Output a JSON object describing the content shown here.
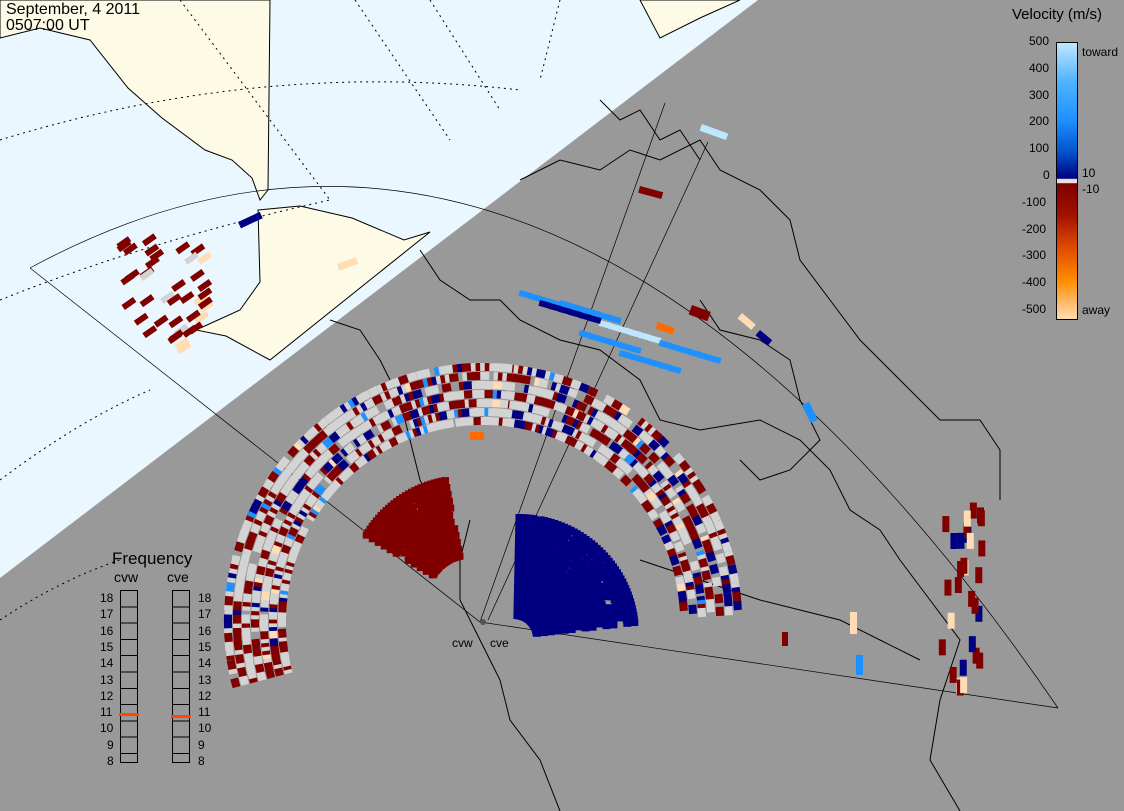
{
  "header": {
    "date": "September, 4 2011",
    "time": "0507:00 UT"
  },
  "velocity_legend": {
    "title": "Velocity (m/s)",
    "ticks": [
      "500",
      "400",
      "300",
      "200",
      "100",
      "0",
      "-100",
      "-200",
      "-300",
      "-400",
      "-500"
    ],
    "extra": [
      "toward",
      "10",
      "-10",
      "away"
    ],
    "colors": {
      "toward_light": "#bfe6ff",
      "toward_mid": "#1e90ff",
      "toward_dark": "#000080",
      "away_dark": "#800000",
      "away_mid": "#ff6a00",
      "away_light": "#ffdcb4",
      "ground_scatter": "#d3d3d3"
    }
  },
  "frequency_panel": {
    "title": "Frequency",
    "radars": [
      {
        "name": "cvw",
        "value": 10.8
      },
      {
        "name": "cve",
        "value": 10.7
      }
    ],
    "scale": [
      "18",
      "17",
      "16",
      "15",
      "14",
      "13",
      "12",
      "11",
      "10",
      "9",
      "8"
    ],
    "marker_color": "#ff4500"
  },
  "map": {
    "sites": [
      "cvw",
      "cve"
    ],
    "colors": {
      "night": "#999999",
      "day_ocean": "#eaf7ff",
      "day_land": "#fdfae6",
      "coast": "#000000",
      "grid": "#000000"
    }
  }
}
